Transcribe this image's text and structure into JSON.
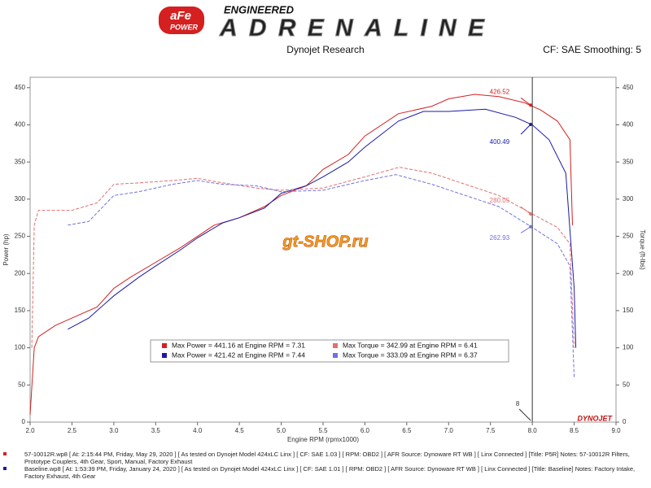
{
  "header": {
    "brand": "aFe",
    "brand_sub": "POWER",
    "tagline": "ENGINEERED",
    "product": "ADRENALINE",
    "source": "Dynojet Research",
    "settings": "CF: SAE Smoothing: 5"
  },
  "chart_data": {
    "type": "line",
    "xlabel": "Engine RPM (rpmx1000)",
    "ylabel": "Power (hp)",
    "y2label": "Torque (ft-lbs)",
    "xlim": [
      2,
      9
    ],
    "xticks": [
      {
        "value": 2,
        "label": "2.0"
      },
      2.5,
      {
        "value": 3,
        "label": "3.0"
      },
      3.5,
      {
        "value": 4,
        "label": "4.0"
      },
      4.5,
      {
        "value": 5,
        "label": "5.0"
      },
      5.5,
      {
        "value": 6,
        "label": "6.0"
      },
      6.5,
      {
        "value": 7,
        "label": "7.0"
      },
      7.5,
      {
        "value": 8,
        "label": "8.0"
      },
      8.5,
      {
        "value": 9,
        "label": "9.0"
      }
    ],
    "ylim": [
      0,
      464
    ],
    "yticks": [
      0,
      50,
      100,
      150,
      200,
      250,
      300,
      350,
      400,
      450
    ],
    "y2lim": [
      0,
      464
    ],
    "y2ticks": [
      0,
      50,
      100,
      150,
      200,
      250,
      300,
      350,
      400,
      450
    ],
    "series": [
      {
        "color": "#d42020",
        "dash": false,
        "x": [
          2.0,
          2.05,
          2.1,
          2.3,
          2.5,
          2.8,
          3.0,
          3.2,
          3.5,
          3.8,
          4.0,
          4.2,
          4.5,
          4.8,
          5.0,
          5.3,
          5.5,
          5.8,
          6.0,
          6.4,
          6.8,
          7.0,
          7.31,
          7.6,
          7.9,
          8.1,
          8.3,
          8.45,
          8.48
        ],
        "values": [
          10,
          100,
          115,
          130,
          140,
          155,
          180,
          195,
          215,
          235,
          250,
          265,
          275,
          290,
          305,
          318,
          340,
          360,
          385,
          415,
          425,
          435,
          441,
          438,
          430,
          420,
          405,
          380,
          265
        ]
      },
      {
        "color": "#1a1aa8",
        "dash": false,
        "x": [
          2.45,
          2.7,
          3.0,
          3.3,
          3.5,
          3.8,
          4.0,
          4.3,
          4.5,
          4.8,
          5.0,
          5.3,
          5.5,
          5.8,
          6.0,
          6.4,
          6.7,
          7.0,
          7.44,
          7.8,
          8.0,
          8.2,
          8.4,
          8.5,
          8.52
        ],
        "values": [
          125,
          140,
          170,
          195,
          210,
          232,
          248,
          268,
          275,
          288,
          308,
          318,
          330,
          350,
          370,
          405,
          418,
          418,
          421,
          410,
          400,
          380,
          335,
          180,
          100
        ]
      },
      {
        "color": "#e07070",
        "dash": true,
        "axis": "y2",
        "x": [
          2.02,
          2.05,
          2.1,
          2.5,
          2.8,
          3.0,
          3.3,
          3.7,
          4.0,
          4.3,
          4.7,
          5.0,
          5.5,
          6.0,
          6.41,
          6.8,
          7.2,
          7.6,
          8.0,
          8.3,
          8.45,
          8.5
        ],
        "values": [
          100,
          265,
          285,
          285,
          295,
          320,
          322,
          325,
          328,
          322,
          315,
          312,
          315,
          330,
          343,
          335,
          320,
          305,
          280,
          262,
          240,
          100
        ]
      },
      {
        "color": "#7070e0",
        "dash": true,
        "axis": "y2",
        "x": [
          2.45,
          2.7,
          3.0,
          3.3,
          3.7,
          4.0,
          4.3,
          4.7,
          5.0,
          5.5,
          6.0,
          6.37,
          6.8,
          7.2,
          7.6,
          8.0,
          8.3,
          8.45,
          8.5
        ],
        "values": [
          265,
          270,
          305,
          310,
          320,
          325,
          320,
          318,
          310,
          312,
          325,
          333,
          320,
          305,
          290,
          262,
          240,
          210,
          60
        ]
      }
    ],
    "cursor_x": 8,
    "cursor_values": [
      {
        "value": 426.52,
        "color": "#d42020"
      },
      {
        "value": 400.49,
        "color": "#1a1aa8"
      },
      {
        "value": 280.05,
        "color": "#e07070"
      },
      {
        "value": 262.93,
        "color": "#7070e0"
      }
    ],
    "legend": [
      {
        "text": "Max Power = 441.16 at Engine RPM = 7.31",
        "color": "#d42020"
      },
      {
        "text": "Max Torque = 342.99 at Engine RPM = 6.41",
        "color": "#e07070"
      },
      {
        "text": "Max Power = 421.42 at Engine RPM = 7.44",
        "color": "#1a1aa8"
      },
      {
        "text": "Max Torque = 333.09 at Engine RPM = 6.37",
        "color": "#7070e0"
      }
    ],
    "watermark": "gt-SHOP.ru",
    "maker": "DYNOJET"
  },
  "footer": [
    {
      "text": "57-10012R.wp8 [ At: 2:15:44 PM, Friday, May 29, 2020 ] [ As tested on Dynojet Model 424xLC Linx ] [ CF: SAE 1.03 ] [ RPM: OBD2 ] [ AFR Source: Dynoware RT WB ] [ Linx Connected ] [Title: P5R]  Notes: 57-10012R Filters, Prototype Couplers, 4th Gear, Sport, Manual, Factory Exhaust",
      "color": "#d42020"
    },
    {
      "text": "Baseline.wp8 [ At: 1:53:39 PM, Friday, January 24, 2020 ] [ As tested on Dynojet Model 424xLC Linx ] [ CF: SAE 1.01 ] [ RPM: OBD2 ] [ AFR Source: Dynoware RT WB ] [ Linx Connected ] [Title: Baseline]  Notes: Factory Intake, Factory Exhaust, 4th Gear",
      "color": "#1a1aa8"
    }
  ]
}
